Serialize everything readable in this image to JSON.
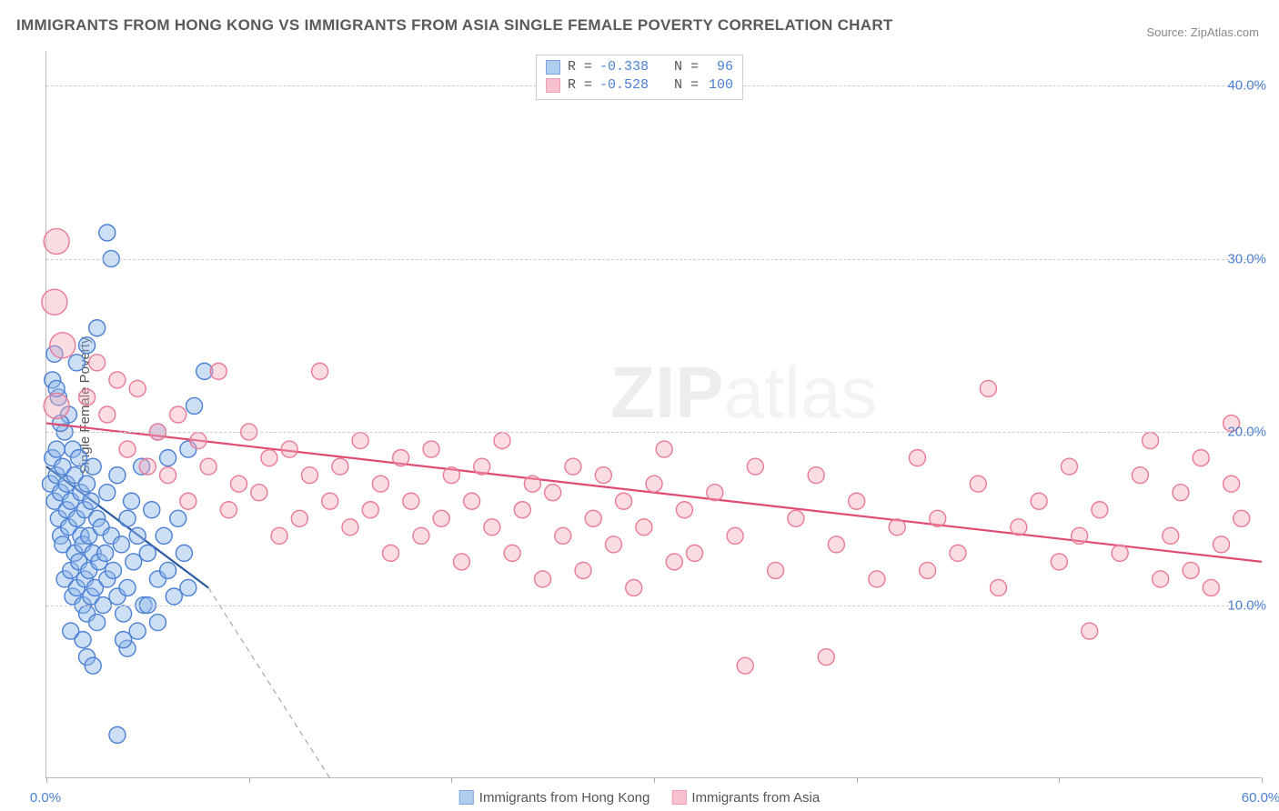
{
  "title": "IMMIGRANTS FROM HONG KONG VS IMMIGRANTS FROM ASIA SINGLE FEMALE POVERTY CORRELATION CHART",
  "source_prefix": "Source: ",
  "source_link": "ZipAtlas.com",
  "y_axis_label": "Single Female Poverty",
  "watermark_bold": "ZIP",
  "watermark_light": "atlas",
  "chart": {
    "type": "scatter",
    "xlim": [
      0,
      60
    ],
    "ylim": [
      0,
      42
    ],
    "x_ticks": [
      0,
      10,
      20,
      30,
      40,
      50,
      60
    ],
    "x_tick_labels": {
      "0": "0.0%",
      "60": "60.0%"
    },
    "y_gridlines": [
      10,
      20,
      30,
      40
    ],
    "y_tick_labels": {
      "10": "10.0%",
      "20": "20.0%",
      "30": "30.0%",
      "40": "40.0%"
    },
    "background_color": "#ffffff",
    "grid_color": "#cccccc",
    "axis_color": "#bbbbbb",
    "label_color": "#4a7fd4",
    "marker_radius": 9,
    "marker_large_radius": 14,
    "marker_stroke_width": 1.4,
    "line_width": 2.2,
    "series": [
      {
        "key": "hk",
        "label": "Immigrants from Hong Kong",
        "fill": "#90b8e8",
        "fill_opacity": 0.45,
        "stroke": "#4a7fd4",
        "R": "-0.338",
        "N": "96",
        "trend": {
          "x1": 0,
          "y1": 18.0,
          "x2": 8.0,
          "y2": 11.0,
          "dash_x2": 14.0,
          "dash_y2": 0,
          "color": "#2c5aa0",
          "dash_color": "#999999"
        },
        "points": [
          [
            0.2,
            17.0
          ],
          [
            0.3,
            18.5
          ],
          [
            0.4,
            16.0
          ],
          [
            0.5,
            17.5
          ],
          [
            0.5,
            19.0
          ],
          [
            0.6,
            15.0
          ],
          [
            0.6,
            22.0
          ],
          [
            0.7,
            14.0
          ],
          [
            0.7,
            16.5
          ],
          [
            0.8,
            18.0
          ],
          [
            0.8,
            13.5
          ],
          [
            0.9,
            20.0
          ],
          [
            0.9,
            11.5
          ],
          [
            1.0,
            17.0
          ],
          [
            1.0,
            15.5
          ],
          [
            1.1,
            14.5
          ],
          [
            1.1,
            21.0
          ],
          [
            1.2,
            12.0
          ],
          [
            1.2,
            16.0
          ],
          [
            1.3,
            19.0
          ],
          [
            1.3,
            10.5
          ],
          [
            1.4,
            13.0
          ],
          [
            1.4,
            17.5
          ],
          [
            1.5,
            15.0
          ],
          [
            1.5,
            11.0
          ],
          [
            1.6,
            18.5
          ],
          [
            1.6,
            12.5
          ],
          [
            1.7,
            14.0
          ],
          [
            1.7,
            16.5
          ],
          [
            1.8,
            10.0
          ],
          [
            1.8,
            13.5
          ],
          [
            1.9,
            15.5
          ],
          [
            1.9,
            11.5
          ],
          [
            2.0,
            17.0
          ],
          [
            2.0,
            9.5
          ],
          [
            2.1,
            14.0
          ],
          [
            2.1,
            12.0
          ],
          [
            2.2,
            16.0
          ],
          [
            2.2,
            10.5
          ],
          [
            2.3,
            13.0
          ],
          [
            2.3,
            18.0
          ],
          [
            2.4,
            11.0
          ],
          [
            2.5,
            15.0
          ],
          [
            2.5,
            9.0
          ],
          [
            2.6,
            12.5
          ],
          [
            2.7,
            14.5
          ],
          [
            2.8,
            10.0
          ],
          [
            2.9,
            13.0
          ],
          [
            3.0,
            16.5
          ],
          [
            3.0,
            11.5
          ],
          [
            3.2,
            14.0
          ],
          [
            3.3,
            12.0
          ],
          [
            3.5,
            17.5
          ],
          [
            3.5,
            10.5
          ],
          [
            3.7,
            13.5
          ],
          [
            3.8,
            9.5
          ],
          [
            4.0,
            15.0
          ],
          [
            4.0,
            11.0
          ],
          [
            4.2,
            16.0
          ],
          [
            4.3,
            12.5
          ],
          [
            4.5,
            14.0
          ],
          [
            4.7,
            18.0
          ],
          [
            4.8,
            10.0
          ],
          [
            5.0,
            13.0
          ],
          [
            5.2,
            15.5
          ],
          [
            5.5,
            11.5
          ],
          [
            5.5,
            20.0
          ],
          [
            5.8,
            14.0
          ],
          [
            6.0,
            12.0
          ],
          [
            6.0,
            18.5
          ],
          [
            6.3,
            10.5
          ],
          [
            6.5,
            15.0
          ],
          [
            6.8,
            13.0
          ],
          [
            7.0,
            11.0
          ],
          [
            7.0,
            19.0
          ],
          [
            7.3,
            21.5
          ],
          [
            7.8,
            23.5
          ],
          [
            2.0,
            25.0
          ],
          [
            2.5,
            26.0
          ],
          [
            1.5,
            24.0
          ],
          [
            0.4,
            24.5
          ],
          [
            0.3,
            23.0
          ],
          [
            2.0,
            7.0
          ],
          [
            2.3,
            6.5
          ],
          [
            1.8,
            8.0
          ],
          [
            1.2,
            8.5
          ],
          [
            3.5,
            2.5
          ],
          [
            3.0,
            31.5
          ],
          [
            3.2,
            30.0
          ],
          [
            0.5,
            22.5
          ],
          [
            0.7,
            20.5
          ],
          [
            5.0,
            10.0
          ],
          [
            5.5,
            9.0
          ],
          [
            4.5,
            8.5
          ],
          [
            4.0,
            7.5
          ],
          [
            3.8,
            8.0
          ]
        ]
      },
      {
        "key": "asia",
        "label": "Immigrants from Asia",
        "fill": "#f5a8b8",
        "fill_opacity": 0.4,
        "stroke": "#e87a95",
        "R": "-0.528",
        "N": "100",
        "trend": {
          "x1": 0,
          "y1": 20.5,
          "x2": 60,
          "y2": 12.5,
          "color": "#e04b72"
        },
        "large_points": [
          [
            0.5,
            31.0
          ],
          [
            0.4,
            27.5
          ],
          [
            0.5,
            21.5
          ],
          [
            0.8,
            25.0
          ]
        ],
        "points": [
          [
            2.0,
            22.0
          ],
          [
            2.5,
            24.0
          ],
          [
            3.0,
            21.0
          ],
          [
            3.5,
            23.0
          ],
          [
            4.0,
            19.0
          ],
          [
            4.5,
            22.5
          ],
          [
            5.0,
            18.0
          ],
          [
            5.5,
            20.0
          ],
          [
            6.0,
            17.5
          ],
          [
            6.5,
            21.0
          ],
          [
            7.0,
            16.0
          ],
          [
            7.5,
            19.5
          ],
          [
            8.0,
            18.0
          ],
          [
            8.5,
            23.5
          ],
          [
            9.0,
            15.5
          ],
          [
            9.5,
            17.0
          ],
          [
            10.0,
            20.0
          ],
          [
            10.5,
            16.5
          ],
          [
            11.0,
            18.5
          ],
          [
            11.5,
            14.0
          ],
          [
            12.0,
            19.0
          ],
          [
            12.5,
            15.0
          ],
          [
            13.0,
            17.5
          ],
          [
            13.5,
            23.5
          ],
          [
            14.0,
            16.0
          ],
          [
            14.5,
            18.0
          ],
          [
            15.0,
            14.5
          ],
          [
            15.5,
            19.5
          ],
          [
            16.0,
            15.5
          ],
          [
            16.5,
            17.0
          ],
          [
            17.0,
            13.0
          ],
          [
            17.5,
            18.5
          ],
          [
            18.0,
            16.0
          ],
          [
            18.5,
            14.0
          ],
          [
            19.0,
            19.0
          ],
          [
            19.5,
            15.0
          ],
          [
            20.0,
            17.5
          ],
          [
            20.5,
            12.5
          ],
          [
            21.0,
            16.0
          ],
          [
            21.5,
            18.0
          ],
          [
            22.0,
            14.5
          ],
          [
            22.5,
            19.5
          ],
          [
            23.0,
            13.0
          ],
          [
            23.5,
            15.5
          ],
          [
            24.0,
            17.0
          ],
          [
            24.5,
            11.5
          ],
          [
            25.0,
            16.5
          ],
          [
            25.5,
            14.0
          ],
          [
            26.0,
            18.0
          ],
          [
            26.5,
            12.0
          ],
          [
            27.0,
            15.0
          ],
          [
            27.5,
            17.5
          ],
          [
            28.0,
            13.5
          ],
          [
            28.5,
            16.0
          ],
          [
            29.0,
            11.0
          ],
          [
            29.5,
            14.5
          ],
          [
            30.0,
            17.0
          ],
          [
            30.5,
            19.0
          ],
          [
            31.0,
            12.5
          ],
          [
            31.5,
            15.5
          ],
          [
            32.0,
            13.0
          ],
          [
            33.0,
            16.5
          ],
          [
            34.0,
            14.0
          ],
          [
            34.5,
            6.5
          ],
          [
            35.0,
            18.0
          ],
          [
            36.0,
            12.0
          ],
          [
            37.0,
            15.0
          ],
          [
            38.0,
            17.5
          ],
          [
            38.5,
            7.0
          ],
          [
            39.0,
            13.5
          ],
          [
            40.0,
            16.0
          ],
          [
            41.0,
            11.5
          ],
          [
            42.0,
            14.5
          ],
          [
            43.0,
            18.5
          ],
          [
            43.5,
            12.0
          ],
          [
            44.0,
            15.0
          ],
          [
            45.0,
            13.0
          ],
          [
            46.0,
            17.0
          ],
          [
            46.5,
            22.5
          ],
          [
            47.0,
            11.0
          ],
          [
            48.0,
            14.5
          ],
          [
            49.0,
            16.0
          ],
          [
            50.0,
            12.5
          ],
          [
            50.5,
            18.0
          ],
          [
            51.0,
            14.0
          ],
          [
            51.5,
            8.5
          ],
          [
            52.0,
            15.5
          ],
          [
            53.0,
            13.0
          ],
          [
            54.0,
            17.5
          ],
          [
            54.5,
            19.5
          ],
          [
            55.0,
            11.5
          ],
          [
            55.5,
            14.0
          ],
          [
            56.0,
            16.5
          ],
          [
            56.5,
            12.0
          ],
          [
            57.0,
            18.5
          ],
          [
            58.0,
            13.5
          ],
          [
            58.5,
            20.5
          ],
          [
            59.0,
            15.0
          ],
          [
            58.5,
            17.0
          ],
          [
            57.5,
            11.0
          ]
        ]
      }
    ]
  },
  "legend_top": {
    "R_label": "R = ",
    "N_label": "N = "
  }
}
